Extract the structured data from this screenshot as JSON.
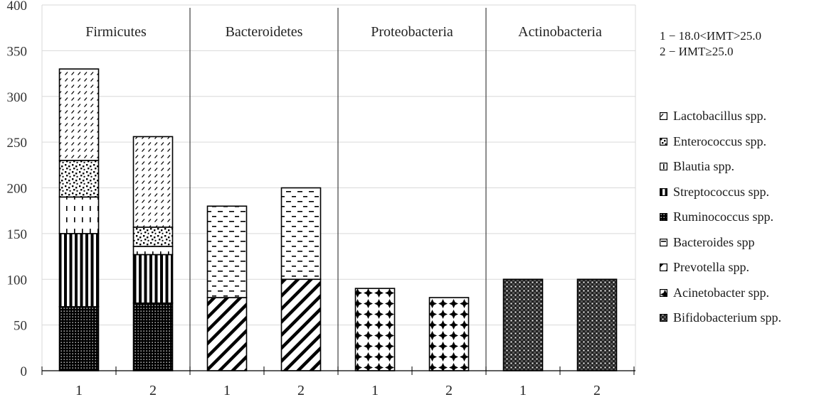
{
  "chart_data": {
    "type": "bar",
    "stacked": true,
    "title": "",
    "xlabel": "",
    "ylabel": "",
    "ylim": [
      0,
      400
    ],
    "yticks": [
      0,
      50,
      100,
      150,
      200,
      250,
      300,
      350,
      400
    ],
    "grid": true,
    "legend_position": "right",
    "groups": [
      {
        "name": "Firmicutes",
        "categories": [
          "1",
          "2"
        ]
      },
      {
        "name": "Bacteroidetes",
        "categories": [
          "1",
          "2"
        ]
      },
      {
        "name": "Proteobacteria",
        "categories": [
          "1",
          "2"
        ]
      },
      {
        "name": "Actinobacteria",
        "categories": [
          "1",
          "2"
        ]
      }
    ],
    "categories": [
      "1",
      "2",
      "1",
      "2",
      "1",
      "2",
      "1",
      "2"
    ],
    "series": [
      {
        "name": "Ruminococcus spp.",
        "pattern": "ruminococcus",
        "values": [
          70,
          74,
          0,
          0,
          0,
          0,
          0,
          0
        ]
      },
      {
        "name": "Streptococcus spp.",
        "pattern": "streptococcus",
        "values": [
          80,
          53,
          0,
          0,
          0,
          0,
          0,
          0
        ]
      },
      {
        "name": "Blautia spp.",
        "pattern": "blautia",
        "values": [
          40,
          9,
          0,
          0,
          0,
          0,
          0,
          0
        ]
      },
      {
        "name": "Enterococcus spp.",
        "pattern": "enterococcus",
        "values": [
          40,
          21,
          0,
          0,
          0,
          0,
          0,
          0
        ]
      },
      {
        "name": "Lactobacillus spp.",
        "pattern": "lactobacillus",
        "values": [
          100,
          99,
          0,
          0,
          0,
          0,
          0,
          0
        ]
      },
      {
        "name": "Prevotella spp.",
        "pattern": "prevotella",
        "values": [
          0,
          0,
          80,
          100,
          0,
          0,
          0,
          0
        ]
      },
      {
        "name": "Bacteroides spp",
        "pattern": "bacteroides",
        "values": [
          0,
          0,
          100,
          100,
          0,
          0,
          0,
          0
        ]
      },
      {
        "name": "Acinetobacter spp.",
        "pattern": "acinetobacter",
        "values": [
          0,
          0,
          0,
          0,
          90,
          80,
          0,
          0
        ]
      },
      {
        "name": "Bifidobacterium spp.",
        "pattern": "bifidobacterium",
        "values": [
          0,
          0,
          0,
          0,
          0,
          0,
          100,
          100
        ]
      }
    ],
    "legend_notes": [
      "1 − 18.0<ИМТ>25.0",
      "2 − ИМТ≥25.0"
    ],
    "legend_order": [
      "Lactobacillus spp.",
      "Enterococcus spp.",
      "Blautia spp.",
      "Streptococcus spp.",
      "Ruminococcus spp.",
      "Bacteroides spp",
      "Prevotella spp.",
      "Acinetobacter spp.",
      "Bifidobacterium spp."
    ],
    "colors": {
      "ink": "#000000",
      "grid": "#d9d9d9",
      "divider": "#404040"
    }
  }
}
